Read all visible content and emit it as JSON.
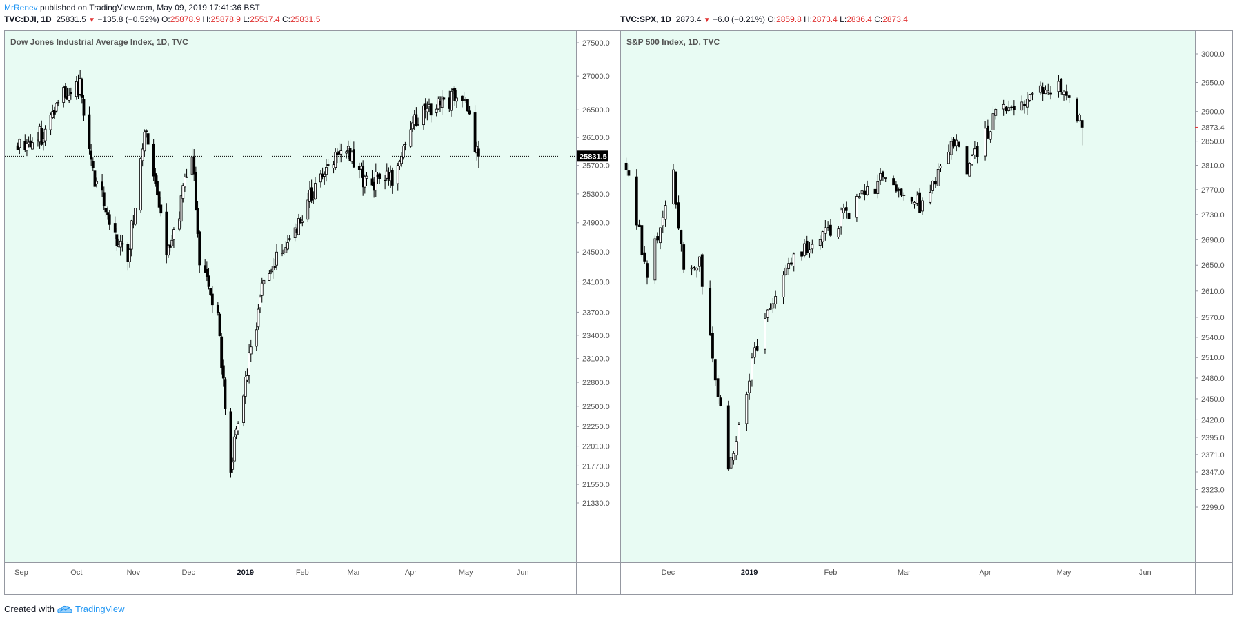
{
  "header": {
    "author": "MrRenev",
    "published_text": "published on TradingView.com, May 09, 2019 17:41:36 BST"
  },
  "footer": {
    "created_prefix": "Created with",
    "brand": "TradingView"
  },
  "colors": {
    "background": "#e8fbf3",
    "accent": "#2196f3",
    "down": "#e03131",
    "candle_down": "#000000",
    "candle_up": "#ffffff"
  },
  "chart_data": [
    {
      "type": "candlestick",
      "title": "Dow Jones Industrial Average Index, 1D, TVC",
      "ohlc_header": {
        "symbol": "TVC:DJI, 1D",
        "last": "25831.5",
        "change": "−135.8 (−0.52%)",
        "o": "25878.9",
        "h": "25878.9",
        "l": "25517.4",
        "c": "25831.5"
      },
      "last_price_label": "25831.5",
      "x_ticks": [
        "Sep",
        "Oct",
        "Nov",
        "Dec",
        "2019",
        "Feb",
        "Mar",
        "Apr",
        "May",
        "Jun"
      ],
      "y_ticks": [
        "27500.0",
        "27000.0",
        "26500.0",
        "26100.0",
        "25700.0",
        "25300.0",
        "24900.0",
        "24500.0",
        "24100.0",
        "23700.0",
        "23400.0",
        "23100.0",
        "22800.0",
        "22500.0",
        "22250.0",
        "22010.0",
        "21770.0",
        "21550.0",
        "21330.0"
      ],
      "y_scale": "log",
      "close_path": [
        [
          "2018-08-30",
          26000
        ],
        [
          "2018-09-14",
          26154
        ],
        [
          "2018-09-21",
          26743
        ],
        [
          "2018-10-03",
          26828
        ],
        [
          "2018-10-10",
          25598
        ],
        [
          "2018-10-24",
          24583
        ],
        [
          "2018-10-29",
          24443
        ],
        [
          "2018-11-07",
          26180
        ],
        [
          "2018-11-20",
          24465
        ],
        [
          "2018-12-03",
          25826
        ],
        [
          "2018-12-07",
          24389
        ],
        [
          "2018-12-17",
          23592
        ],
        [
          "2018-12-24",
          21792
        ],
        [
          "2019-01-10",
          24001
        ],
        [
          "2019-01-31",
          24999
        ],
        [
          "2019-02-22",
          26031
        ],
        [
          "2019-03-08",
          25450
        ],
        [
          "2019-03-22",
          25502
        ],
        [
          "2019-04-05",
          26424
        ],
        [
          "2019-04-23",
          26656
        ],
        [
          "2019-04-30",
          26593
        ],
        [
          "2019-05-08",
          25831.5
        ]
      ]
    },
    {
      "type": "candlestick",
      "title": "S&P 500 Index, 1D, TVC",
      "ohlc_header": {
        "symbol": "TVC:SPX, 1D",
        "last": "2873.4",
        "change": "−6.0 (−0.21%)",
        "o": "2859.8",
        "h": "2873.4",
        "l": "2836.4",
        "c": "2873.4"
      },
      "last_price_label": "2873.4",
      "x_ticks": [
        "Dec",
        "2019",
        "Feb",
        "Mar",
        "Apr",
        "May",
        "Jun"
      ],
      "y_ticks": [
        "3000.0",
        "2950.0",
        "2900.0",
        "2850.0",
        "2810.0",
        "2770.0",
        "2730.0",
        "2690.0",
        "2650.0",
        "2610.0",
        "2570.0",
        "2540.0",
        "2510.0",
        "2480.0",
        "2450.0",
        "2420.0",
        "2395.0",
        "2371.0",
        "2347.0",
        "2323.0",
        "2299.0"
      ],
      "y_scale": "log",
      "close_path": [
        [
          "2018-11-15",
          2810
        ],
        [
          "2018-11-23",
          2633
        ],
        [
          "2018-12-03",
          2790
        ],
        [
          "2018-12-07",
          2633
        ],
        [
          "2018-12-13",
          2650
        ],
        [
          "2018-12-24",
          2351
        ],
        [
          "2019-01-04",
          2532
        ],
        [
          "2019-01-18",
          2670
        ],
        [
          "2019-01-31",
          2704
        ],
        [
          "2019-02-22",
          2793
        ],
        [
          "2019-03-08",
          2743
        ],
        [
          "2019-03-21",
          2855
        ],
        [
          "2019-03-25",
          2798
        ],
        [
          "2019-04-05",
          2893
        ],
        [
          "2019-04-23",
          2933
        ],
        [
          "2019-04-30",
          2945
        ],
        [
          "2019-05-08",
          2873.4
        ]
      ]
    }
  ]
}
